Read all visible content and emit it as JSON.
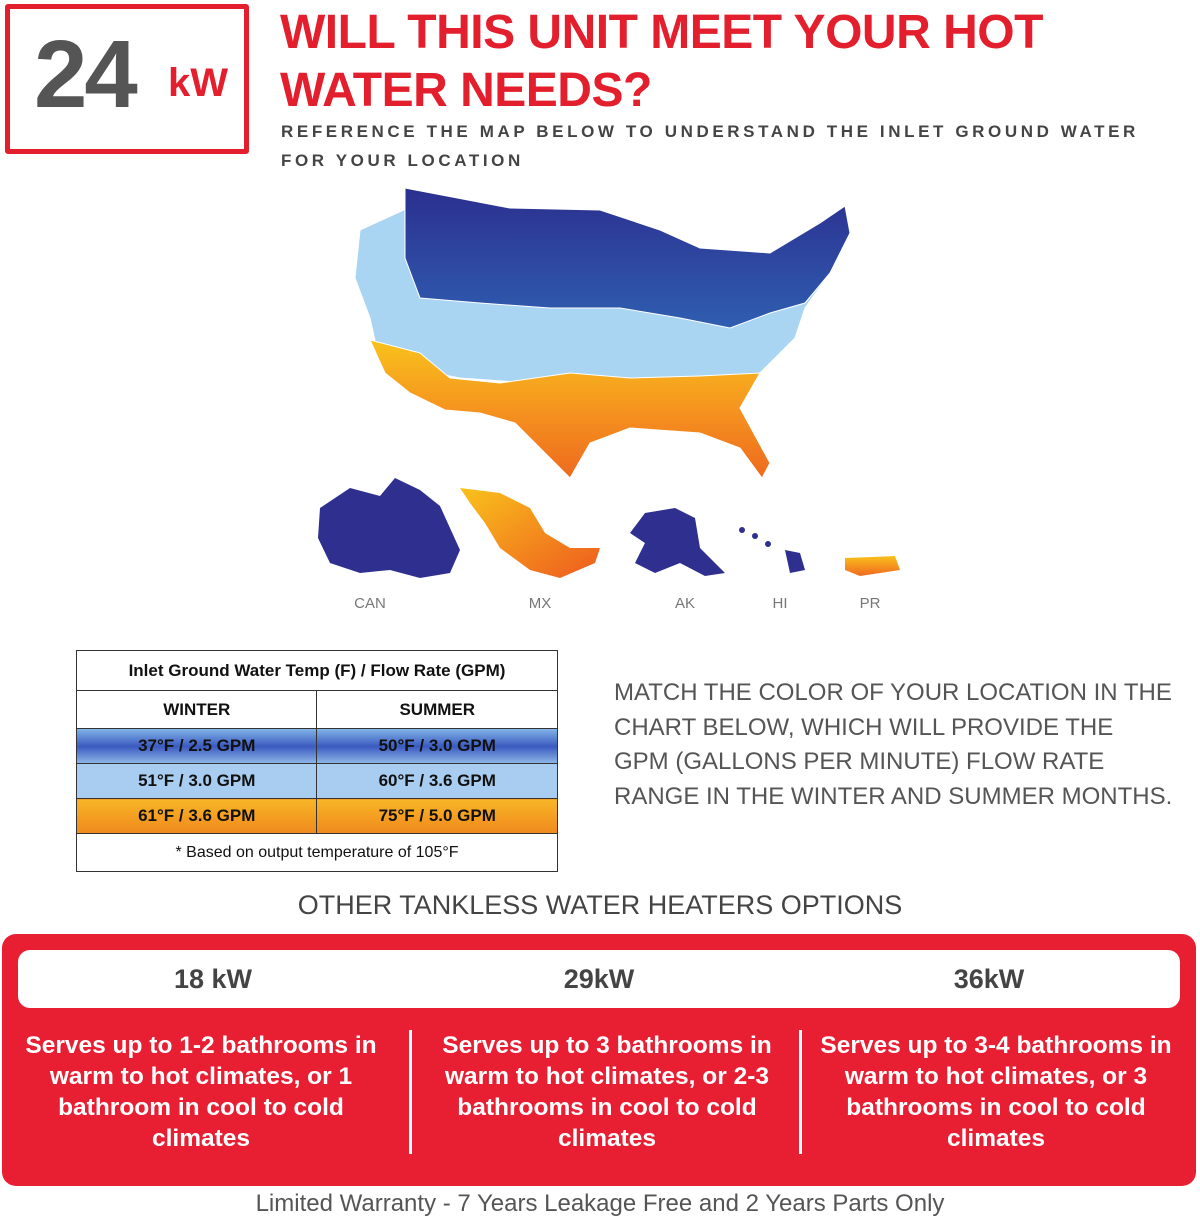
{
  "badge": {
    "number": "24",
    "unit": "kW"
  },
  "title": "WILL THIS UNIT MEET YOUR HOT WATER NEEDS?",
  "subtitle": "REFERENCE THE MAP BELOW TO UNDERSTAND THE INLET GROUND WATER FOR YOUR LOCATION",
  "map": {
    "regions": [
      "CAN",
      "MX",
      "AK",
      "HI",
      "PR"
    ],
    "zone_colors": {
      "cold": "#2f3a99",
      "mild": "#a9d5f2",
      "warm": "#f5a623"
    }
  },
  "table": {
    "header": "Inlet Ground Water Temp (F) / Flow Rate (GPM)",
    "columns": [
      "WINTER",
      "SUMMER"
    ],
    "rows": [
      [
        "37°F / 2.5 GPM",
        "50°F / 3.0 GPM"
      ],
      [
        "51°F / 3.0 GPM",
        "60°F / 3.6 GPM"
      ],
      [
        "61°F / 3.6 GPM",
        "75°F / 5.0 GPM"
      ]
    ],
    "note": "* Based on output temperature of 105°F"
  },
  "match_text": "MATCH THE COLOR OF YOUR LOCATION IN THE CHART BELOW, WHICH WILL PROVIDE THE GPM (GALLONS PER MINUTE) FLOW RATE RANGE IN THE WINTER AND SUMMER MONTHS.",
  "options": {
    "heading": "OTHER TANKLESS WATER HEATERS OPTIONS",
    "items": [
      {
        "label": "18 kW",
        "desc": "Serves up to 1-2 bathrooms in warm to hot climates, or 1 bathroom in cool to cold climates"
      },
      {
        "label": "29kW",
        "desc": "Serves up to 3 bathrooms in warm to hot climates, or 2-3 bathrooms in cool to cold climates"
      },
      {
        "label": "36kW",
        "desc": "Serves up to 3-4 bathrooms in warm to hot climates, or 3 bathrooms in cool to cold climates"
      }
    ],
    "accent_color": "#e81e32"
  },
  "warranty": "Limited Warranty - 7 Years Leakage Free and 2 Years Parts Only"
}
